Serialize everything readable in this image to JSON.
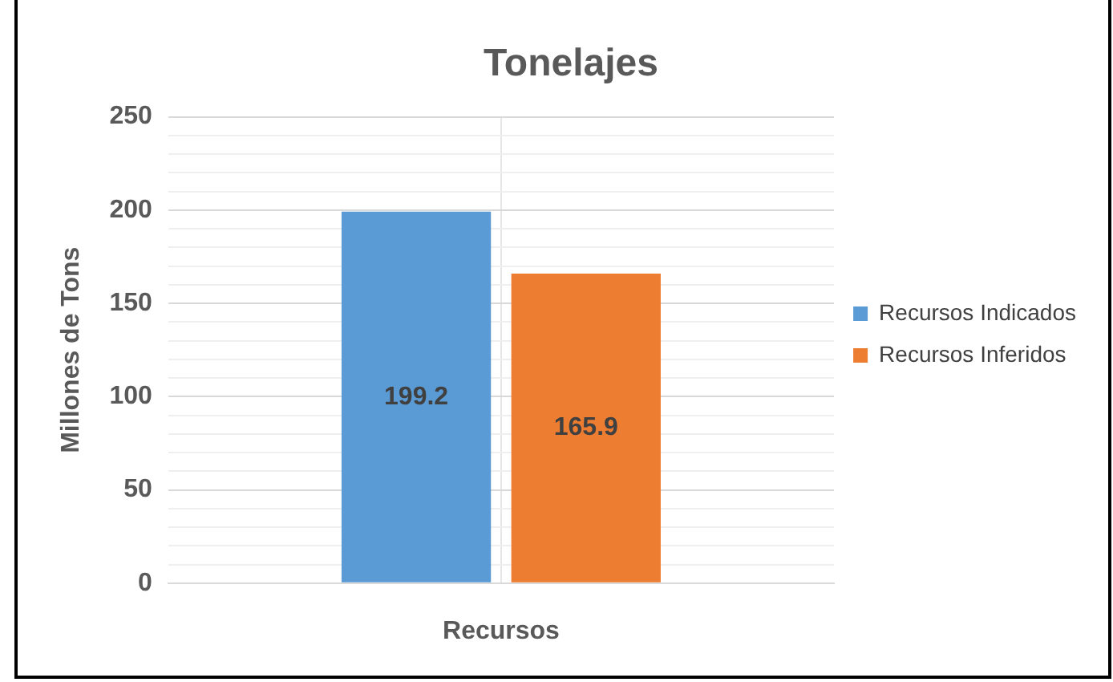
{
  "chart_data": {
    "type": "bar",
    "title": "Tonelajes",
    "xlabel": "Recursos",
    "ylabel": "Millones de Tons",
    "categories": [
      null
    ],
    "series": [
      {
        "name": "Recursos Indicados",
        "color": "#5b9bd5",
        "values": [
          199.2
        ]
      },
      {
        "name": "Recursos Inferidos",
        "color": "#ed7d31",
        "values": [
          165.9
        ]
      }
    ],
    "ylim": [
      0,
      250
    ],
    "yticks": [
      0,
      {
        "value": 10,
        "label": null
      },
      {
        "value": 20,
        "label": null
      },
      {
        "value": 30,
        "label": null
      },
      {
        "value": 40,
        "label": null
      },
      50,
      {
        "value": 60,
        "label": null
      },
      {
        "value": 70,
        "label": null
      },
      {
        "value": 80,
        "label": null
      },
      {
        "value": 90,
        "label": null
      },
      100,
      {
        "value": 110,
        "label": null
      },
      {
        "value": 120,
        "label": null
      },
      {
        "value": 130,
        "label": null
      },
      {
        "value": 140,
        "label": null
      },
      150,
      {
        "value": 160,
        "label": null
      },
      {
        "value": 170,
        "label": null
      },
      {
        "value": 180,
        "label": null
      },
      {
        "value": 190,
        "label": null
      },
      200,
      {
        "value": 210,
        "label": null
      },
      {
        "value": 220,
        "label": null
      },
      {
        "value": 230,
        "label": null
      },
      {
        "value": 240,
        "label": null
      },
      250
    ],
    "grid": true,
    "legend": "right",
    "data_labels": true
  }
}
